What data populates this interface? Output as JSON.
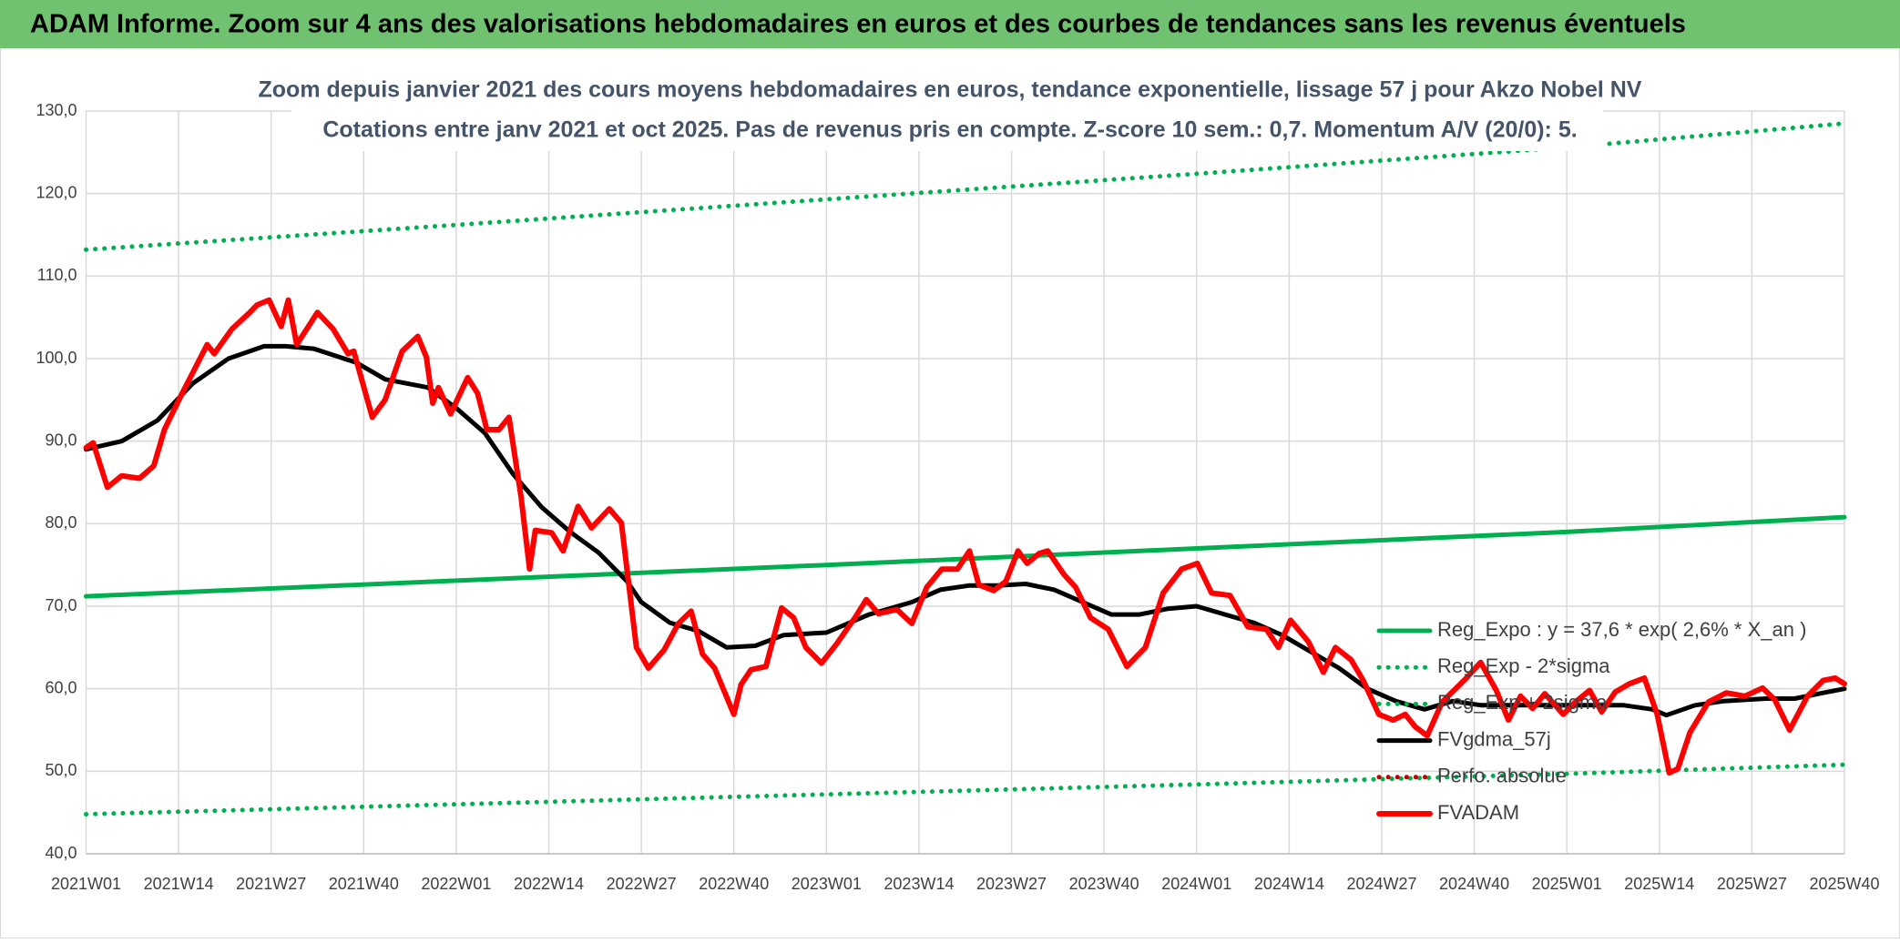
{
  "chart_data": {
    "type": "line",
    "header": "ADAM Informe. Zoom sur 4 ans des valorisations hebdomadaires en euros et des courbes de tendances sans les revenus éventuels",
    "title": "Zoom depuis janvier 2021 des cours moyens hebdomadaires en euros, tendance exponentielle, lissage 57 j pour Akzo Nobel NV",
    "subtitle": "Cotations entre janv 2021 et oct 2025. Pas de revenus pris en compte. Z-score 10 sem.: 0,7. Momentum A/V (20/0): 5.",
    "xlim": [
      0,
      247
    ],
    "xticks": [
      {
        "value": 0,
        "label": "2021W01"
      },
      {
        "value": 13,
        "label": "2021W14"
      },
      {
        "value": 26,
        "label": "2021W27"
      },
      {
        "value": 39,
        "label": "2021W40"
      },
      {
        "value": 52,
        "label": "2022W01"
      },
      {
        "value": 65,
        "label": "2022W14"
      },
      {
        "value": 78,
        "label": "2022W27"
      },
      {
        "value": 91,
        "label": "2022W40"
      },
      {
        "value": 104,
        "label": "2023W01"
      },
      {
        "value": 117,
        "label": "2023W14"
      },
      {
        "value": 130,
        "label": "2023W27"
      },
      {
        "value": 143,
        "label": "2023W40"
      },
      {
        "value": 156,
        "label": "2024W01"
      },
      {
        "value": 169,
        "label": "2024W14"
      },
      {
        "value": 182,
        "label": "2024W27"
      },
      {
        "value": 195,
        "label": "2024W40"
      },
      {
        "value": 208,
        "label": "2025W01"
      },
      {
        "value": 221,
        "label": "2025W14"
      },
      {
        "value": 234,
        "label": "2025W27"
      },
      {
        "value": 247,
        "label": "2025W40"
      }
    ],
    "ylim": [
      40,
      130
    ],
    "yticks": [
      {
        "value": 40,
        "label": "40,0"
      },
      {
        "value": 50,
        "label": "50,0"
      },
      {
        "value": 60,
        "label": "60,0"
      },
      {
        "value": 70,
        "label": "70,0"
      },
      {
        "value": 80,
        "label": "80,0"
      },
      {
        "value": 90,
        "label": "90,0"
      },
      {
        "value": 100,
        "label": "100,0"
      },
      {
        "value": 110,
        "label": "110,0"
      },
      {
        "value": 120,
        "label": "120,0"
      },
      {
        "value": 130,
        "label": "130,0"
      }
    ],
    "grid": true,
    "legend": "right",
    "series": [
      {
        "name": "Reg_Expo : y = 37,6 * exp( 2,6% *  X_an )",
        "color": "#00b050",
        "style": "solid",
        "x": [
          0,
          52,
          104,
          156,
          208,
          247
        ],
        "values": [
          71.2,
          73.1,
          75.0,
          77.0,
          79.0,
          80.8
        ]
      },
      {
        "name": "Reg_Exp - 2*sigma",
        "color": "#00b050",
        "style": "dotted",
        "x": [
          0,
          52,
          104,
          156,
          208,
          247
        ],
        "values": [
          44.8,
          46.0,
          47.2,
          48.4,
          49.7,
          50.8
        ]
      },
      {
        "name": "Reg_Exp + 2sigma",
        "color": "#00b050",
        "style": "dotted",
        "x": [
          0,
          52,
          104,
          156,
          208,
          247
        ],
        "values": [
          113.2,
          116.2,
          119.3,
          122.4,
          125.6,
          128.5
        ]
      },
      {
        "name": "FVgdma_57j",
        "color": "#000000",
        "style": "solid",
        "x": [
          0,
          5,
          10,
          15,
          20,
          25,
          28,
          32,
          38,
          42,
          48,
          52,
          56,
          60,
          64,
          68,
          72,
          76,
          78,
          82,
          86,
          90,
          94,
          98,
          104,
          110,
          116,
          120,
          124,
          128,
          132,
          136,
          140,
          144,
          148,
          152,
          156,
          160,
          164,
          168,
          172,
          176,
          180,
          184,
          188,
          192,
          196,
          200,
          204,
          208,
          212,
          216,
          220,
          222,
          226,
          230,
          236,
          240,
          244,
          247
        ],
        "values": [
          89,
          90,
          92.5,
          97,
          100,
          101.5,
          101.5,
          101.2,
          99.5,
          97.5,
          96.5,
          94,
          91,
          86,
          82,
          79,
          76.5,
          73,
          70.5,
          68,
          67,
          65,
          65.2,
          66.5,
          66.8,
          69,
          70.5,
          72,
          72.5,
          72.5,
          72.7,
          72,
          70.5,
          69,
          69,
          69.7,
          70,
          69,
          68,
          66.5,
          64.5,
          62.5,
          60,
          58.5,
          57.5,
          58.5,
          58,
          58,
          58,
          58,
          58,
          58,
          57.5,
          56.8,
          58,
          58.5,
          58.8,
          58.8,
          59.5,
          60
        ]
      },
      {
        "name": "Perfo. absolue",
        "color": "#c00000",
        "style": "dotted",
        "x": [],
        "values": []
      },
      {
        "name": "FVADAM",
        "color": "#ff0000",
        "style": "solid",
        "x": [
          0,
          1,
          3,
          5,
          7.5,
          9.5,
          11,
          13.5,
          15,
          17,
          18,
          20.5,
          23,
          24,
          25.7,
          27.4,
          28.4,
          29.6,
          32.5,
          34.7,
          36.8,
          37.6,
          40.2,
          42,
          44.4,
          46.6,
          47.8,
          48.7,
          49.5,
          51.2,
          53.6,
          55,
          56.3,
          58,
          59.4,
          61.1,
          62.3,
          63.1,
          65.4,
          67,
          69.1,
          71,
          73.5,
          75.2,
          77.3,
          79,
          81.2,
          83.2,
          85,
          86.6,
          88.3,
          91,
          92,
          93.4,
          95.5,
          97.7,
          99.4,
          101.1,
          103.3,
          105.4,
          108,
          109.6,
          111.3,
          113.9,
          116,
          118.1,
          120.2,
          122.4,
          124.1,
          125.4,
          127.5,
          129.2,
          130.9,
          132.2,
          133.9,
          135.1,
          137.4,
          139,
          141.1,
          143.6,
          146.2,
          148.8,
          151.3,
          153.9,
          156.1,
          158.1,
          160.7,
          163.2,
          165.8,
          167.5,
          169.2,
          171.7,
          173.8,
          175.5,
          177.7,
          179.4,
          181.6,
          183.6,
          185.3,
          186.7,
          188.4,
          190.5,
          193.9,
          195.9,
          198.1,
          199.8,
          201.5,
          203.2,
          204.9,
          207.5,
          209.2,
          211.2,
          212.9,
          214.8,
          216.8,
          218.9,
          220.7,
          222.4,
          223.6,
          225.3,
          227.9,
          230.4,
          233,
          235.5,
          237.2,
          239.3,
          241.8,
          244,
          245.7,
          247
        ],
        "values": [
          89.2,
          89.8,
          84.4,
          85.8,
          85.5,
          87,
          91.4,
          95.8,
          98.3,
          101.7,
          100.6,
          103.6,
          105.6,
          106.5,
          107.1,
          103.9,
          107.1,
          101.7,
          105.6,
          103.6,
          100.6,
          100.9,
          92.9,
          95,
          100.9,
          102.7,
          100.2,
          94.6,
          96.5,
          93.3,
          97.7,
          95.8,
          91.4,
          91.4,
          92.9,
          83.3,
          74.5,
          79.2,
          78.9,
          76.7,
          82.1,
          79.5,
          81.8,
          80.1,
          65,
          62.5,
          64.7,
          67.9,
          69.4,
          64.2,
          62.5,
          56.9,
          60.5,
          62.3,
          62.7,
          69.8,
          68.6,
          65,
          63.1,
          65.4,
          68.6,
          70.8,
          69.1,
          69.6,
          67.9,
          72.3,
          74.5,
          74.5,
          76.7,
          72.6,
          71.9,
          73,
          76.7,
          75.2,
          76.4,
          76.7,
          73.8,
          72.3,
          68.6,
          67.2,
          62.7,
          65,
          71.6,
          74.5,
          75.2,
          71.6,
          71.3,
          67.5,
          67.2,
          65,
          68.3,
          65.7,
          62,
          65,
          63.5,
          61,
          56.9,
          56.2,
          56.9,
          55.4,
          54.3,
          58.4,
          61.3,
          63.2,
          59.8,
          56.2,
          59.1,
          57.6,
          59.4,
          56.9,
          58.4,
          59.8,
          57.2,
          59.6,
          60.6,
          61.3,
          56.9,
          49.8,
          50.3,
          54.7,
          58.4,
          59.5,
          59.1,
          60.1,
          58.7,
          55,
          59.1,
          61,
          61.3,
          60.6
        ]
      }
    ]
  }
}
